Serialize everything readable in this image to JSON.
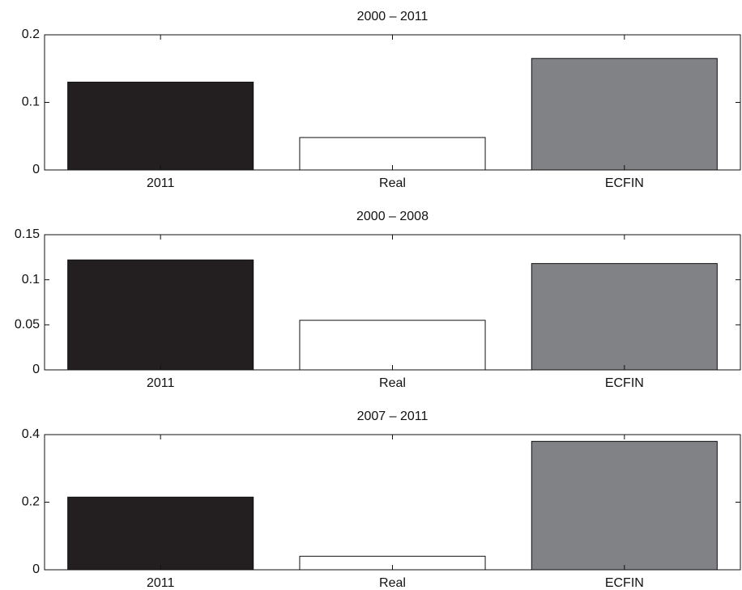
{
  "chart_data": [
    {
      "type": "bar",
      "title": "2000 – 2011",
      "categories": [
        "2011",
        "Real",
        "ECFIN"
      ],
      "values": [
        0.13,
        0.048,
        0.165
      ],
      "colors": [
        "#231f20",
        "#ffffff",
        "#808285"
      ],
      "ylim": [
        0,
        0.2
      ],
      "yticks": [
        0,
        0.1,
        0.2
      ]
    },
    {
      "type": "bar",
      "title": "2000 – 2008",
      "categories": [
        "2011",
        "Real",
        "ECFIN"
      ],
      "values": [
        0.122,
        0.055,
        0.118
      ],
      "colors": [
        "#231f20",
        "#ffffff",
        "#808285"
      ],
      "ylim": [
        0,
        0.15
      ],
      "yticks": [
        0,
        0.05,
        0.1,
        0.15
      ]
    },
    {
      "type": "bar",
      "title": "2007 – 2011",
      "categories": [
        "2011",
        "Real",
        "ECFIN"
      ],
      "values": [
        0.215,
        0.04,
        0.38
      ],
      "colors": [
        "#231f20",
        "#ffffff",
        "#808285"
      ],
      "ylim": [
        0,
        0.4
      ],
      "yticks": [
        0,
        0.2,
        0.4
      ]
    }
  ]
}
